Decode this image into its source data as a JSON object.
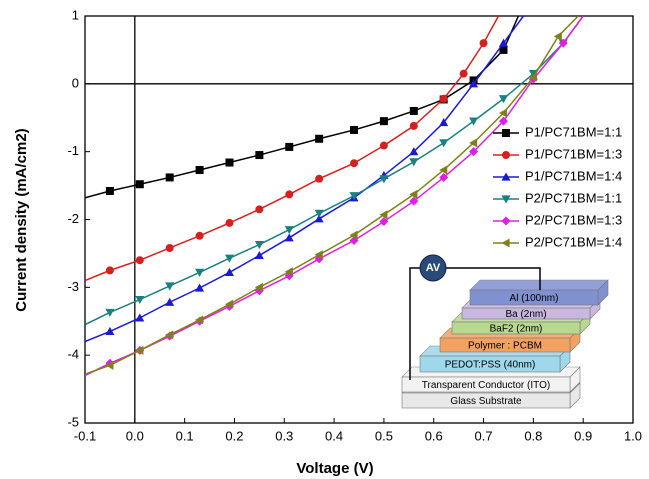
{
  "chart_data": {
    "type": "line",
    "x_label": "Voltage (V)",
    "y_label": "Current density (mA/cm2)",
    "xlim": [
      -0.1,
      1.0
    ],
    "ylim": [
      -5,
      1
    ],
    "xticks": [
      -0.1,
      {
        "value": 0,
        "label": "0.0"
      },
      0.1,
      0.2,
      0.3,
      0.4,
      0.5,
      0.6,
      0.7,
      0.8,
      0.9,
      {
        "value": 1,
        "label": "1.0"
      }
    ],
    "yticks": [
      -5,
      -4,
      -3,
      -2,
      -1,
      0,
      1
    ],
    "zero_lines": true,
    "legend": "right",
    "series": [
      {
        "name": "P1/PC71BM=1:1",
        "color": "#000000",
        "marker": "square",
        "x": [
          -0.1,
          -0.05,
          0.01,
          0.07,
          0.13,
          0.19,
          0.25,
          0.31,
          0.37,
          0.44,
          0.5,
          0.56,
          0.62,
          0.68,
          0.74,
          0.77
        ],
        "values": [
          -1.68,
          -1.58,
          -1.48,
          -1.38,
          -1.27,
          -1.16,
          -1.05,
          -0.93,
          -0.81,
          -0.68,
          -0.55,
          -0.4,
          -0.23,
          0.05,
          0.5,
          1.0
        ]
      },
      {
        "name": "P1/PC71BM=1:3",
        "color": "#d62020",
        "marker": "circle",
        "x": [
          -0.1,
          -0.05,
          0.01,
          0.07,
          0.13,
          0.19,
          0.25,
          0.31,
          0.37,
          0.44,
          0.5,
          0.56,
          0.62,
          0.66,
          0.7,
          0.73
        ],
        "values": [
          -2.9,
          -2.75,
          -2.6,
          -2.42,
          -2.24,
          -2.05,
          -1.85,
          -1.63,
          -1.4,
          -1.17,
          -0.91,
          -0.62,
          -0.22,
          0.15,
          0.6,
          1.0
        ]
      },
      {
        "name": "P1/PC71BM=1:4",
        "color": "#1a1ad6",
        "marker": "triangle-up",
        "x": [
          -0.1,
          -0.05,
          0.01,
          0.07,
          0.13,
          0.19,
          0.25,
          0.31,
          0.37,
          0.44,
          0.5,
          0.56,
          0.62,
          0.68,
          0.74,
          0.78
        ],
        "values": [
          -3.8,
          -3.65,
          -3.45,
          -3.22,
          -3.01,
          -2.78,
          -2.53,
          -2.27,
          -1.99,
          -1.68,
          -1.35,
          -1.0,
          -0.57,
          0.0,
          0.6,
          1.0
        ]
      },
      {
        "name": "P2/PC71BM=1:1",
        "color": "#1a8080",
        "marker": "triangle-down",
        "x": [
          -0.1,
          -0.05,
          0.01,
          0.07,
          0.13,
          0.19,
          0.25,
          0.31,
          0.37,
          0.44,
          0.5,
          0.56,
          0.62,
          0.68,
          0.74,
          0.8,
          0.86,
          0.9
        ],
        "values": [
          -3.55,
          -3.37,
          -3.18,
          -2.98,
          -2.78,
          -2.57,
          -2.37,
          -2.15,
          -1.91,
          -1.65,
          -1.4,
          -1.15,
          -0.87,
          -0.55,
          -0.22,
          0.15,
          0.6,
          1.0
        ]
      },
      {
        "name": "P2/PC71BM=1:3",
        "color": "#e020e0",
        "marker": "diamond",
        "x": [
          -0.1,
          -0.05,
          0.01,
          0.07,
          0.13,
          0.19,
          0.25,
          0.31,
          0.37,
          0.44,
          0.5,
          0.56,
          0.62,
          0.68,
          0.74,
          0.8,
          0.86,
          0.9
        ],
        "values": [
          -4.3,
          -4.12,
          -3.93,
          -3.72,
          -3.5,
          -3.28,
          -3.05,
          -2.83,
          -2.58,
          -2.31,
          -2.03,
          -1.73,
          -1.38,
          -1.0,
          -0.55,
          0.07,
          0.6,
          1.0
        ]
      },
      {
        "name": "P2/PC71BM=1:4",
        "color": "#80801a",
        "marker": "triangle-left",
        "x": [
          -0.1,
          -0.05,
          0.01,
          0.07,
          0.13,
          0.19,
          0.25,
          0.31,
          0.37,
          0.44,
          0.5,
          0.56,
          0.62,
          0.68,
          0.74,
          0.8,
          0.85,
          0.89
        ],
        "values": [
          -4.28,
          -4.15,
          -3.93,
          -3.7,
          -3.48,
          -3.25,
          -3.0,
          -2.77,
          -2.52,
          -2.23,
          -1.93,
          -1.63,
          -1.27,
          -0.87,
          -0.43,
          0.1,
          0.7,
          1.0
        ]
      }
    ],
    "inset": {
      "source": "AV",
      "layers": [
        "Glass Substrate",
        "Transparent Conductor (ITO)",
        "PEDOT:PSS (40nm)",
        "Polymer : PCBM",
        "BaF2 (2nm)",
        "Ba (2nm)",
        "Al (100nm)"
      ]
    }
  }
}
